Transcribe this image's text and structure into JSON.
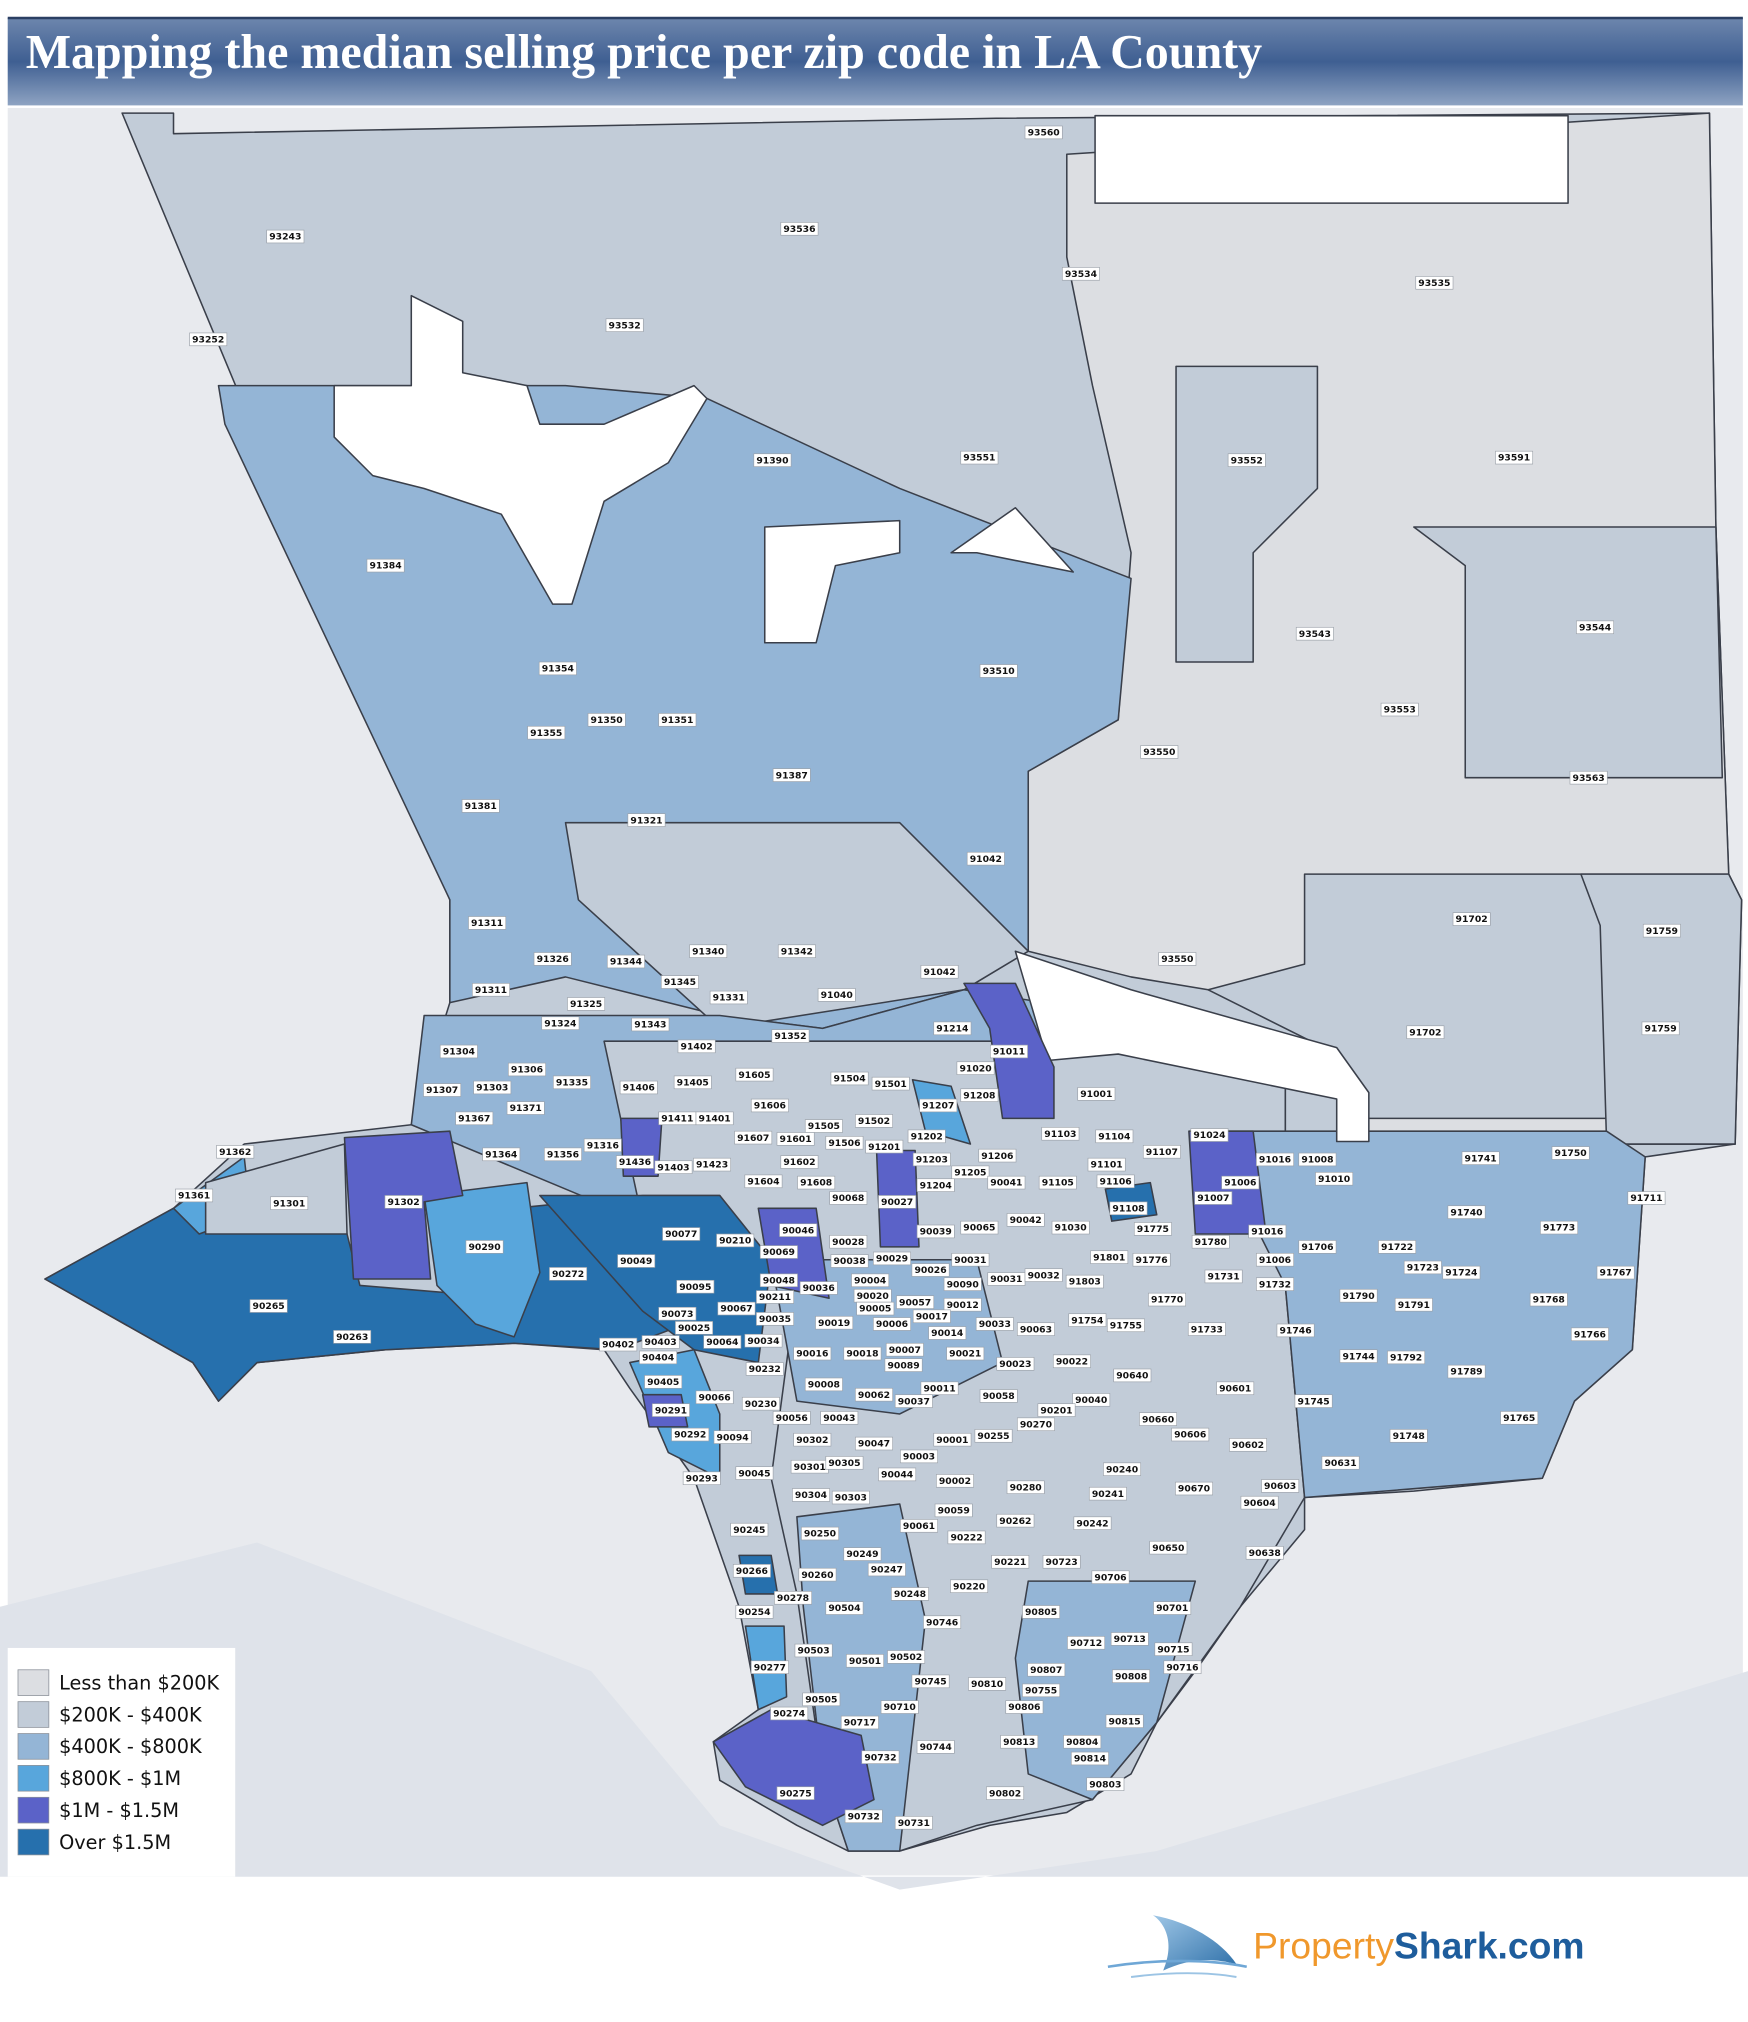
{
  "title": "Mapping the median selling price per zip code in LA County",
  "legend": [
    {
      "label": "Less than $200K",
      "color": "#dcdee2"
    },
    {
      "label": "$200K - $400K",
      "color": "#c2ccd8"
    },
    {
      "label": "$400K - $800K",
      "color": "#94b5d6"
    },
    {
      "label": "$800K - $1M",
      "color": "#58a6dc"
    },
    {
      "label": "$1M - $1.5M",
      "color": "#5b62c8"
    },
    {
      "label": "Over  $1.5M",
      "color": "#2670ad"
    }
  ],
  "logo": {
    "text_1": "Property",
    "text_2": "Shark.com"
  },
  "zips": [
    "93560",
    "93243",
    "93536",
    "93535",
    "93534",
    "93532",
    "93252",
    "93551",
    "91390",
    "93552",
    "93591",
    "91384",
    "93543",
    "93544",
    "93510",
    "91354",
    "91350",
    "91351",
    "93553",
    "91355",
    "93550",
    "91387",
    "93563",
    "91381",
    "91321",
    "91042",
    "91702",
    "91759",
    "91311",
    "91326",
    "91344",
    "91340",
    "91342",
    "93550",
    "91345",
    "91042",
    "91311",
    "91331",
    "91040",
    "91325",
    "91324",
    "91343",
    "91214",
    "91702",
    "91759",
    "91352",
    "91402",
    "91304",
    "91011",
    "91020",
    "91306",
    "91605",
    "91504",
    "91335",
    "91405",
    "91501",
    "91307",
    "91303",
    "91406",
    "91208",
    "91001",
    "91371",
    "91606",
    "91207",
    "91367",
    "91411",
    "91401",
    "91505",
    "91502",
    "91103",
    "91104",
    "91024",
    "91607",
    "91601",
    "91506",
    "91201",
    "91202",
    "91107",
    "91362",
    "91316",
    "91364",
    "91356",
    "91436",
    "91403",
    "91423",
    "91602",
    "91203",
    "91206",
    "91016",
    "91008",
    "91101",
    "91205",
    "91604",
    "91608",
    "91204",
    "90041",
    "91105",
    "91106",
    "91006",
    "91010",
    "91361",
    "91301",
    "91302",
    "90068",
    "90027",
    "91108",
    "91007",
    "91741",
    "91750",
    "91711",
    "91740",
    "90290",
    "90077",
    "90210",
    "90046",
    "90039",
    "90065",
    "90042",
    "91030",
    "91775",
    "91780",
    "91016",
    "91773",
    "90069",
    "90028",
    "90038",
    "90029",
    "90031",
    "91801",
    "91776",
    "91006",
    "91706",
    "91722",
    "91723",
    "91724",
    "91767",
    "90049",
    "90272",
    "90026",
    "90004",
    "90048",
    "90031",
    "90032",
    "91803",
    "91731",
    "91732",
    "90095",
    "90036",
    "90211",
    "90020",
    "90090",
    "91790",
    "91791",
    "91768",
    "90265",
    "90073",
    "90067",
    "90005",
    "90057",
    "90012",
    "91770",
    "91733",
    "90025",
    "90035",
    "90019",
    "90006",
    "90017",
    "90014",
    "90033",
    "90063",
    "91754",
    "91755",
    "91746",
    "91766",
    "90263",
    "90402",
    "90403",
    "90064",
    "90034",
    "90016",
    "90018",
    "90007",
    "90021",
    "90023",
    "90022",
    "91744",
    "91792",
    "90404",
    "90089",
    "90232",
    "90640",
    "91789",
    "90405",
    "90008",
    "90011",
    "90601",
    "90062",
    "90037",
    "90066",
    "90230",
    "90058",
    "90040",
    "91745",
    "90291",
    "90201",
    "90056",
    "90043",
    "90270",
    "90660",
    "91765",
    "90292",
    "90094",
    "90302",
    "90001",
    "90255",
    "90606",
    "91748",
    "90047",
    "90602",
    "90003",
    "90301",
    "90305",
    "90045",
    "90044",
    "90240",
    "90631",
    "90293",
    "90002",
    "90603",
    "90304",
    "90303",
    "90280",
    "90241",
    "90670",
    "90604",
    "90059",
    "90262",
    "90242",
    "90061",
    "90245",
    "90250",
    "90222",
    "90650",
    "90638",
    "90249",
    "90221",
    "90723",
    "90247",
    "90266",
    "90260",
    "90706",
    "90220",
    "90248",
    "90278",
    "90254",
    "90504",
    "90701",
    "90805",
    "90746",
    "90712",
    "90713",
    "90503",
    "90715",
    "90501",
    "90502",
    "90716",
    "90277",
    "90807",
    "90745",
    "90808",
    "90810",
    "90755",
    "90505",
    "90710",
    "90806",
    "90274",
    "90717",
    "90815",
    "90813",
    "90804",
    "90744",
    "90732",
    "90814",
    "90275",
    "90803",
    "90802",
    "90732",
    "90731"
  ]
}
